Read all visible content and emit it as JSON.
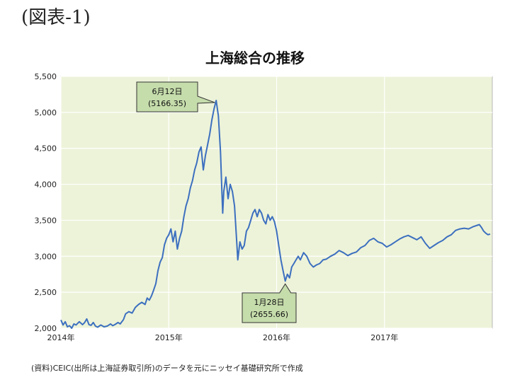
{
  "figure_label": "(図表-1)",
  "source_note": "(資料)CEIC(出所は上海証券取引所)のデータを元にニッセイ基礎研究所で作成",
  "chart_data": {
    "type": "line",
    "title": "上海総合の推移",
    "xlabel": "",
    "ylabel": "",
    "ylim": [
      2000,
      5500
    ],
    "xlim": [
      2014.0,
      2018.0
    ],
    "y_ticks": [
      2000,
      2500,
      3000,
      3500,
      4000,
      4500,
      5000,
      5500
    ],
    "y_tick_labels": [
      "2,000",
      "2,500",
      "3,000",
      "3,500",
      "4,000",
      "4,500",
      "5,000",
      "5,500"
    ],
    "x_ticks": [
      2014,
      2015,
      2016,
      2017
    ],
    "x_tick_labels": [
      "2014年",
      "2015年",
      "2016年",
      "2017年"
    ],
    "grid": true,
    "plot_background": "#edf3d9",
    "grid_color": "#ffffff",
    "line_color": "#3c6fbf",
    "callout_fill": "#c5dcab",
    "series": [
      {
        "values": [
          [
            2014.0,
            2115
          ],
          [
            2014.02,
            2045
          ],
          [
            2014.04,
            2090
          ],
          [
            2014.06,
            2020
          ],
          [
            2014.08,
            2035
          ],
          [
            2014.1,
            2000
          ],
          [
            2014.12,
            2060
          ],
          [
            2014.14,
            2045
          ],
          [
            2014.17,
            2090
          ],
          [
            2014.2,
            2050
          ],
          [
            2014.22,
            2080
          ],
          [
            2014.24,
            2130
          ],
          [
            2014.26,
            2050
          ],
          [
            2014.28,
            2040
          ],
          [
            2014.3,
            2080
          ],
          [
            2014.32,
            2030
          ],
          [
            2014.34,
            2015
          ],
          [
            2014.37,
            2045
          ],
          [
            2014.4,
            2020
          ],
          [
            2014.43,
            2030
          ],
          [
            2014.46,
            2060
          ],
          [
            2014.48,
            2035
          ],
          [
            2014.5,
            2050
          ],
          [
            2014.53,
            2080
          ],
          [
            2014.55,
            2060
          ],
          [
            2014.58,
            2120
          ],
          [
            2014.6,
            2200
          ],
          [
            2014.63,
            2230
          ],
          [
            2014.66,
            2210
          ],
          [
            2014.69,
            2290
          ],
          [
            2014.72,
            2330
          ],
          [
            2014.75,
            2360
          ],
          [
            2014.78,
            2330
          ],
          [
            2014.8,
            2420
          ],
          [
            2014.82,
            2390
          ],
          [
            2014.84,
            2450
          ],
          [
            2014.86,
            2530
          ],
          [
            2014.88,
            2620
          ],
          [
            2014.9,
            2800
          ],
          [
            2014.92,
            2920
          ],
          [
            2014.94,
            2980
          ],
          [
            2014.96,
            3160
          ],
          [
            2014.98,
            3250
          ],
          [
            2015.0,
            3300
          ],
          [
            2015.02,
            3380
          ],
          [
            2015.04,
            3200
          ],
          [
            2015.06,
            3350
          ],
          [
            2015.08,
            3100
          ],
          [
            2015.1,
            3250
          ],
          [
            2015.12,
            3350
          ],
          [
            2015.14,
            3550
          ],
          [
            2015.16,
            3700
          ],
          [
            2015.18,
            3800
          ],
          [
            2015.2,
            3950
          ],
          [
            2015.22,
            4050
          ],
          [
            2015.24,
            4200
          ],
          [
            2015.26,
            4300
          ],
          [
            2015.28,
            4450
          ],
          [
            2015.3,
            4520
          ],
          [
            2015.32,
            4200
          ],
          [
            2015.34,
            4400
          ],
          [
            2015.36,
            4550
          ],
          [
            2015.38,
            4700
          ],
          [
            2015.4,
            4900
          ],
          [
            2015.42,
            5050
          ],
          [
            2015.44,
            5166
          ],
          [
            2015.46,
            4950
          ],
          [
            2015.48,
            4450
          ],
          [
            2015.49,
            4000
          ],
          [
            2015.5,
            3600
          ],
          [
            2015.51,
            3900
          ],
          [
            2015.53,
            4100
          ],
          [
            2015.55,
            3800
          ],
          [
            2015.57,
            4000
          ],
          [
            2015.59,
            3900
          ],
          [
            2015.61,
            3700
          ],
          [
            2015.63,
            3200
          ],
          [
            2015.64,
            2950
          ],
          [
            2015.66,
            3200
          ],
          [
            2015.68,
            3100
          ],
          [
            2015.7,
            3150
          ],
          [
            2015.72,
            3350
          ],
          [
            2015.74,
            3400
          ],
          [
            2015.76,
            3500
          ],
          [
            2015.78,
            3600
          ],
          [
            2015.8,
            3650
          ],
          [
            2015.82,
            3550
          ],
          [
            2015.84,
            3650
          ],
          [
            2015.86,
            3600
          ],
          [
            2015.88,
            3500
          ],
          [
            2015.9,
            3450
          ],
          [
            2015.92,
            3580
          ],
          [
            2015.94,
            3500
          ],
          [
            2015.96,
            3550
          ],
          [
            2015.98,
            3480
          ],
          [
            2016.0,
            3350
          ],
          [
            2016.02,
            3150
          ],
          [
            2016.04,
            2950
          ],
          [
            2016.06,
            2800
          ],
          [
            2016.08,
            2656
          ],
          [
            2016.1,
            2750
          ],
          [
            2016.12,
            2700
          ],
          [
            2016.14,
            2850
          ],
          [
            2016.16,
            2900
          ],
          [
            2016.18,
            2950
          ],
          [
            2016.2,
            3000
          ],
          [
            2016.22,
            2950
          ],
          [
            2016.25,
            3050
          ],
          [
            2016.28,
            3000
          ],
          [
            2016.31,
            2900
          ],
          [
            2016.34,
            2850
          ],
          [
            2016.37,
            2880
          ],
          [
            2016.4,
            2900
          ],
          [
            2016.43,
            2950
          ],
          [
            2016.46,
            2960
          ],
          [
            2016.5,
            3000
          ],
          [
            2016.54,
            3030
          ],
          [
            2016.58,
            3080
          ],
          [
            2016.62,
            3050
          ],
          [
            2016.66,
            3010
          ],
          [
            2016.7,
            3040
          ],
          [
            2016.74,
            3060
          ],
          [
            2016.78,
            3120
          ],
          [
            2016.82,
            3150
          ],
          [
            2016.86,
            3220
          ],
          [
            2016.9,
            3250
          ],
          [
            2016.94,
            3200
          ],
          [
            2016.98,
            3180
          ],
          [
            2017.02,
            3130
          ],
          [
            2017.06,
            3160
          ],
          [
            2017.1,
            3200
          ],
          [
            2017.14,
            3240
          ],
          [
            2017.18,
            3270
          ],
          [
            2017.22,
            3290
          ],
          [
            2017.26,
            3260
          ],
          [
            2017.3,
            3230
          ],
          [
            2017.34,
            3270
          ],
          [
            2017.38,
            3180
          ],
          [
            2017.42,
            3110
          ],
          [
            2017.46,
            3150
          ],
          [
            2017.5,
            3190
          ],
          [
            2017.54,
            3220
          ],
          [
            2017.58,
            3270
          ],
          [
            2017.62,
            3300
          ],
          [
            2017.66,
            3360
          ],
          [
            2017.7,
            3380
          ],
          [
            2017.74,
            3390
          ],
          [
            2017.78,
            3380
          ],
          [
            2017.82,
            3410
          ],
          [
            2017.86,
            3430
          ],
          [
            2017.88,
            3440
          ],
          [
            2017.9,
            3400
          ],
          [
            2017.92,
            3350
          ],
          [
            2017.94,
            3320
          ],
          [
            2017.96,
            3300
          ],
          [
            2017.98,
            3310
          ]
        ]
      }
    ],
    "annotations": [
      {
        "label": "6月12日",
        "sublabel": "(5166.35)",
        "x": 2015.44,
        "y": 5166.35
      },
      {
        "label": "1月28日",
        "sublabel": "(2655.66)",
        "x": 2016.08,
        "y": 2655.66
      }
    ]
  }
}
